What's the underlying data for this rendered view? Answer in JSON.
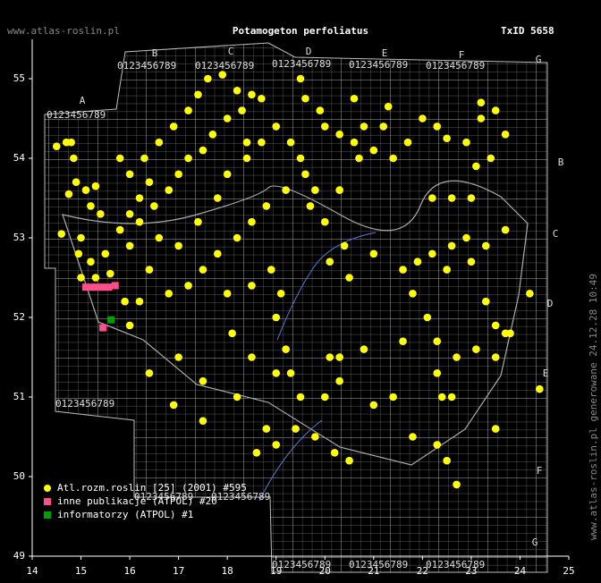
{
  "chart_data": {
    "type": "scatter",
    "site": "www.atlas-roslin.pl",
    "title": "Potamogeton perfoliatus",
    "taxon_id": "TxID 5658",
    "footer": "www.atlas-roslin.pl generowane 24.12.28 10:49",
    "xlim": [
      14,
      25
    ],
    "ylim": [
      49,
      55.5
    ],
    "xticks": [
      14,
      15,
      16,
      17,
      18,
      19,
      20,
      21,
      22,
      23,
      24,
      25
    ],
    "yticks": [
      49,
      50,
      51,
      52,
      53,
      54,
      55
    ],
    "grid_letters": [
      "A",
      "B",
      "C",
      "D",
      "E",
      "F",
      "G"
    ],
    "grid_digits": "0123456789",
    "series": [
      {
        "name": "Atl.rozm.roslin [25] (2001) #595",
        "color": "#ffff00",
        "x": [
          14.5,
          14.7,
          14.8,
          14.85,
          14.9,
          15.1,
          15.3,
          14.75,
          15.2,
          15.4,
          14.6,
          15.0,
          14.95,
          15.2,
          15.0,
          15.3,
          15.6,
          15.5,
          15.8,
          16.0,
          16.2,
          16.4,
          16.0,
          15.8,
          16.3,
          16.6,
          16.9,
          17.2,
          17.4,
          17.6,
          17.9,
          18.2,
          18.5,
          18.7,
          18.3,
          18.0,
          17.7,
          17.5,
          17.2,
          17.0,
          16.8,
          16.5,
          16.2,
          16.6,
          17.0,
          17.4,
          17.8,
          18.0,
          18.4,
          18.7,
          19.0,
          19.3,
          19.5,
          19.6,
          19.2,
          18.8,
          18.5,
          18.2,
          17.8,
          17.5,
          17.2,
          16.8,
          16.2,
          16.4,
          16.0,
          18.0,
          18.5,
          18.9,
          19.1,
          19.0,
          19.2,
          19.0,
          19.3,
          19.5,
          19.4,
          19.8,
          20.2,
          20.5,
          19.0,
          18.6,
          18.8,
          20.0,
          20.3,
          20.3,
          20.1,
          20.8,
          21.8,
          22.3,
          22.5,
          22.7,
          23.5,
          22.4,
          22.6,
          22.3,
          22.3,
          22.1,
          21.8,
          21.6,
          21.9,
          22.2,
          22.6,
          22.9,
          23.3,
          23.0,
          22.5,
          23.3,
          23.5,
          23.7,
          23.5,
          23.1,
          23.8,
          24.2,
          24.4,
          22.2,
          22.6,
          23.0,
          23.7,
          22.5,
          22.3,
          22.9,
          23.2,
          23.5,
          23.7,
          23.4,
          23.1,
          21.7,
          21.4,
          21.0,
          20.6,
          20.3,
          20.0,
          19.9,
          20.8,
          21.2,
          20.7,
          20.3,
          19.7,
          20.0,
          20.4,
          20.1,
          21.0,
          20.5,
          16.4,
          17.0,
          15.9,
          16.0,
          17.5,
          16.9,
          17.5,
          18.2,
          18.1,
          18.5,
          21.6,
          21.4,
          21.0,
          22.7,
          18.4,
          19.8,
          19.6,
          20.6,
          22.0,
          23.2,
          21.3,
          19.5
        ],
        "values": [
          54.15,
          54.2,
          54.2,
          54.0,
          53.7,
          53.6,
          53.65,
          53.55,
          53.4,
          53.3,
          53.05,
          53.0,
          52.8,
          52.7,
          52.5,
          52.5,
          52.55,
          52.8,
          53.1,
          53.3,
          53.5,
          53.7,
          53.8,
          54.0,
          54.0,
          54.2,
          54.4,
          54.6,
          54.8,
          55.0,
          55.05,
          54.85,
          54.8,
          54.75,
          54.6,
          54.5,
          54.3,
          54.1,
          54.0,
          53.8,
          53.6,
          53.4,
          53.2,
          53.0,
          52.9,
          53.2,
          53.5,
          53.8,
          54.0,
          54.2,
          54.4,
          54.2,
          54.0,
          53.8,
          53.6,
          53.4,
          53.2,
          53.0,
          52.8,
          52.6,
          52.4,
          52.3,
          52.2,
          52.6,
          52.9,
          52.3,
          52.4,
          52.6,
          52.3,
          52.0,
          51.6,
          51.3,
          51.3,
          51.0,
          50.6,
          50.5,
          50.3,
          50.2,
          50.4,
          50.3,
          50.6,
          51.0,
          51.2,
          51.5,
          51.5,
          51.6,
          50.5,
          50.4,
          50.2,
          49.9,
          50.6,
          51.0,
          51.0,
          51.3,
          51.7,
          52.0,
          52.3,
          52.6,
          52.7,
          52.8,
          52.9,
          53.0,
          52.9,
          52.7,
          52.6,
          52.2,
          51.9,
          51.8,
          51.5,
          51.6,
          51.8,
          52.3,
          51.1,
          53.5,
          53.5,
          53.5,
          53.1,
          54.25,
          54.4,
          54.2,
          54.5,
          54.6,
          54.3,
          54.0,
          53.9,
          54.2,
          54.0,
          54.1,
          54.2,
          54.3,
          54.4,
          54.6,
          54.4,
          54.4,
          54.0,
          53.6,
          53.4,
          53.2,
          52.9,
          52.7,
          52.8,
          52.5,
          51.3,
          51.5,
          52.2,
          51.9,
          51.2,
          50.9,
          50.7,
          51.0,
          51.8,
          51.5,
          51.7,
          51.0,
          50.9,
          51.5,
          54.2,
          53.6,
          54.75,
          54.75,
          54.5,
          54.7,
          54.65,
          55.0
        ]
      },
      {
        "name": "inne publikacje (ATPOL) #20",
        "color": "#ff4f8b",
        "x": [
          15.1,
          15.22,
          15.33,
          15.45,
          15.57,
          15.7,
          15.45
        ],
        "values": [
          52.38,
          52.38,
          52.38,
          52.38,
          52.38,
          52.4,
          51.87
        ]
      },
      {
        "name": "informatorzy (ATPOL) #1",
        "color": "#00a000",
        "x": [
          15.62
        ],
        "values": [
          51.97
        ]
      }
    ]
  }
}
